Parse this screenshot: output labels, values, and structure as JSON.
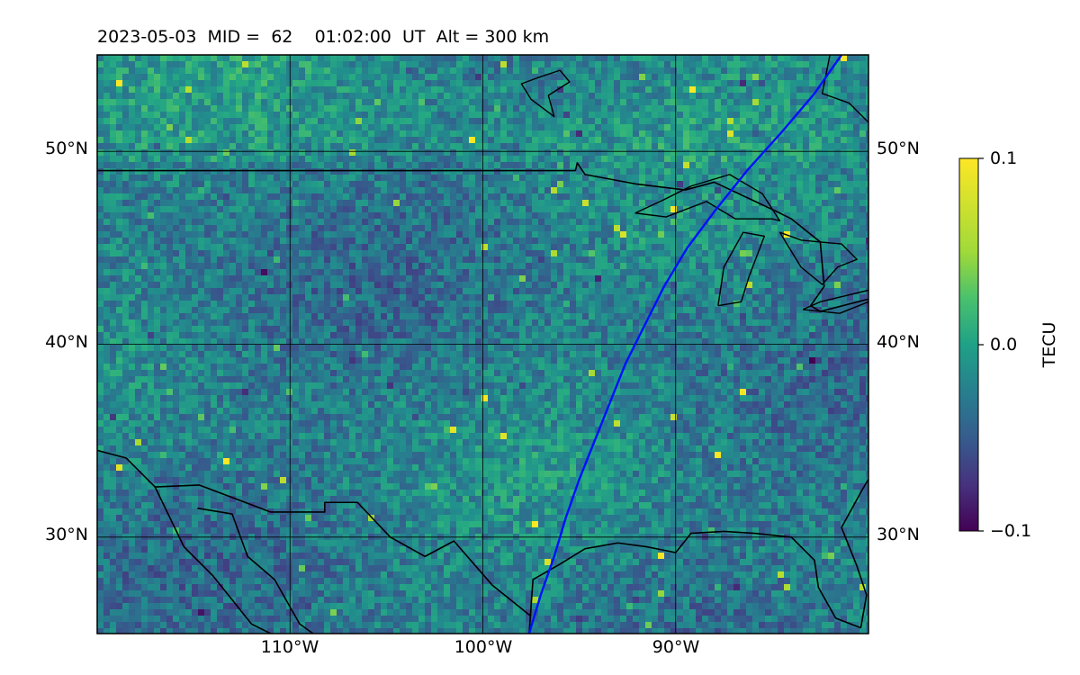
{
  "title": {
    "date": "2023-05-03",
    "mid_label": "MID =",
    "mid_value": "62",
    "time": "01:02:00",
    "time_unit": "UT",
    "alt_label": "Alt =",
    "alt_value": "300",
    "alt_unit": "km"
  },
  "map": {
    "lon_range": [
      -120,
      -80
    ],
    "lat_range": [
      25,
      55
    ],
    "lat_ticks": [
      "50°N",
      "40°N",
      "30°N"
    ],
    "lat_tick_values": [
      50,
      40,
      30
    ],
    "lon_ticks": [
      "110°W",
      "100°W",
      "90°W"
    ],
    "lon_tick_values": [
      -110,
      -100,
      -90
    ],
    "gridlines": true,
    "colors": {
      "track": "#0010ff",
      "coastline": "#000000",
      "gridline": "#000000"
    },
    "satellite_track": [
      [
        -97.6,
        25
      ],
      [
        -97.0,
        27
      ],
      [
        -96.3,
        29
      ],
      [
        -95.7,
        31
      ],
      [
        -95.0,
        33
      ],
      [
        -94.2,
        35
      ],
      [
        -93.4,
        37
      ],
      [
        -92.6,
        39
      ],
      [
        -91.6,
        41
      ],
      [
        -90.6,
        43
      ],
      [
        -89.4,
        45
      ],
      [
        -87.9,
        47
      ],
      [
        -86.3,
        49
      ],
      [
        -84.5,
        51
      ],
      [
        -82.8,
        53
      ],
      [
        -81.4,
        55
      ]
    ]
  },
  "colorbar": {
    "label": "TECU",
    "colormap": "viridis",
    "ticks": [
      "0.1",
      "0.0",
      "−0.1"
    ],
    "tick_values": [
      0.1,
      0.0,
      -0.1
    ],
    "range": [
      -0.1,
      0.1
    ]
  }
}
